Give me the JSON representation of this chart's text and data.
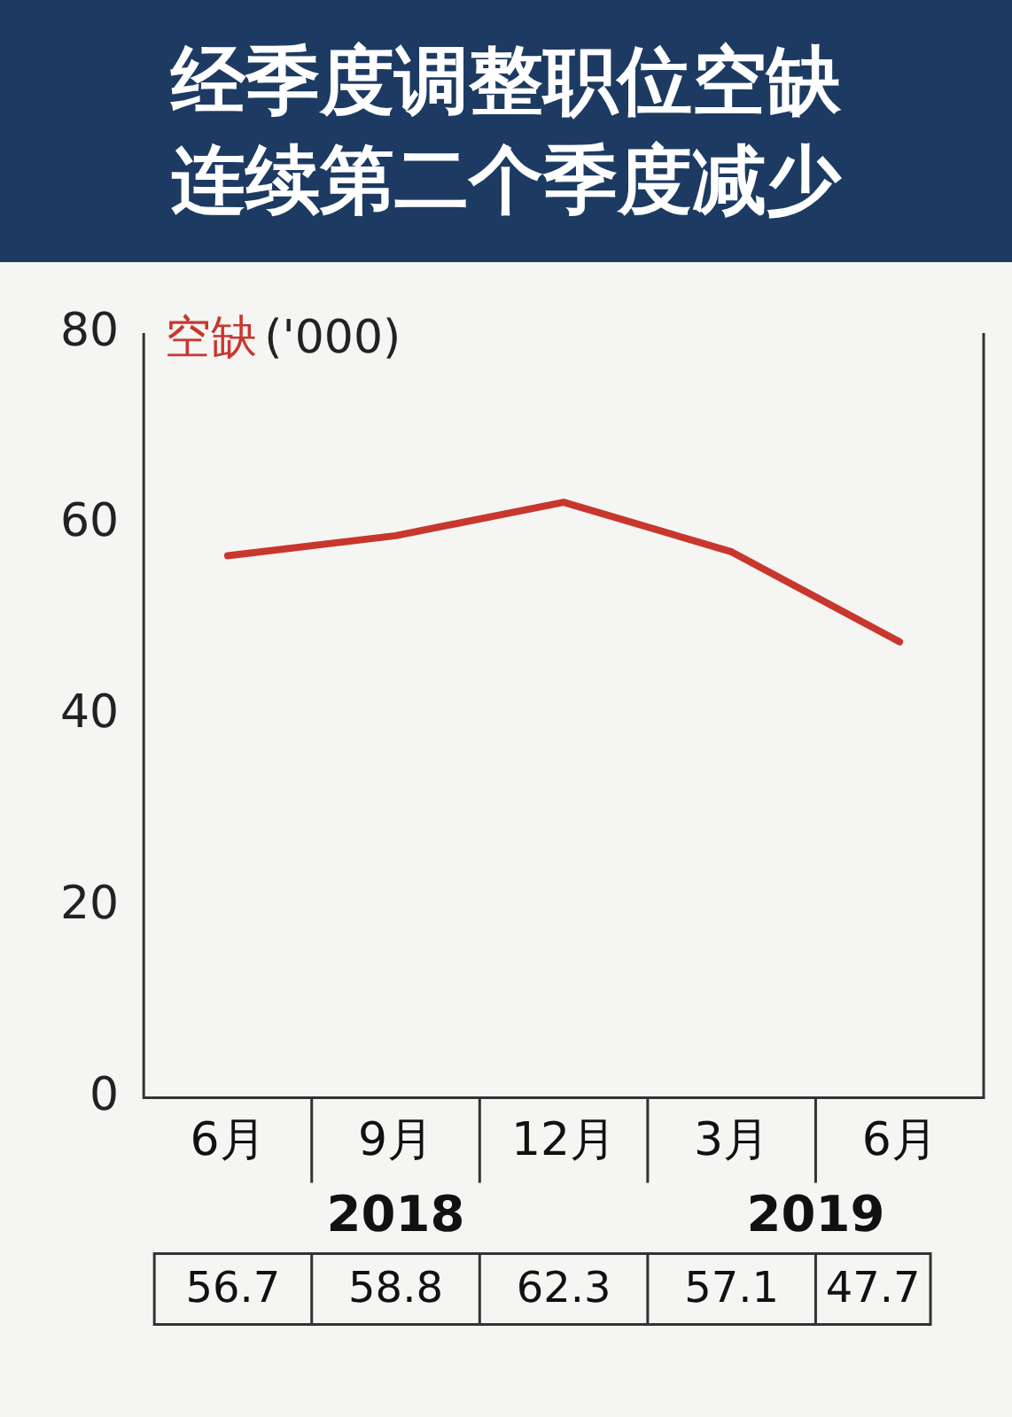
{
  "chart_data": {
    "type": "line",
    "title": "经季度调整职位空缺连续第二个季度减少",
    "ylabel": "('000)",
    "categories": [
      "6月",
      "9月",
      "12月",
      "3月",
      "6月"
    ],
    "series": [
      {
        "name": "空缺",
        "color": "#c8372d",
        "values": [
          56.7,
          58.8,
          62.3,
          57.1,
          47.7
        ]
      }
    ],
    "ylim": [
      0,
      80
    ],
    "yticks": [
      0,
      20,
      40,
      60,
      80
    ],
    "grid": false,
    "legend": false,
    "marker": "none",
    "data_labels": true,
    "annotations": [
      "2018",
      "2019"
    ]
  }
}
